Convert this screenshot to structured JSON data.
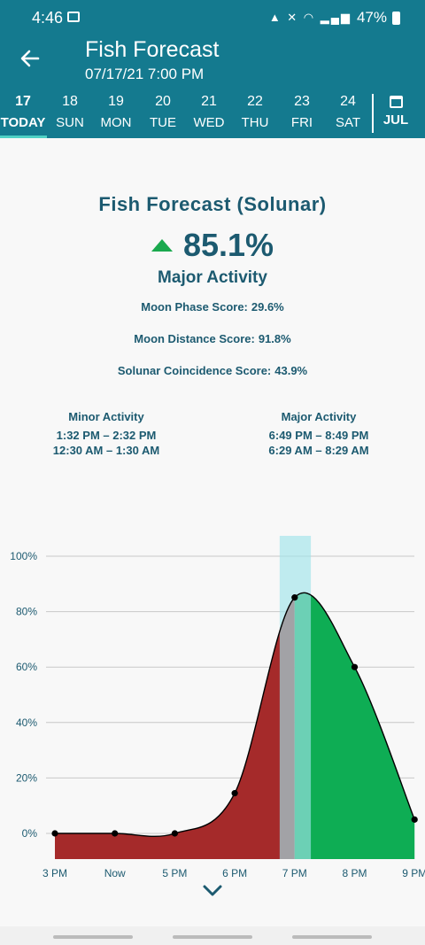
{
  "status": {
    "time": "4:46",
    "battery": "47%"
  },
  "appbar": {
    "title": "Fish Forecast",
    "subtitle": "07/17/21 7:00 PM"
  },
  "days": [
    {
      "num": "17",
      "name": "TODAY",
      "selected": true
    },
    {
      "num": "18",
      "name": "SUN"
    },
    {
      "num": "19",
      "name": "MON"
    },
    {
      "num": "20",
      "name": "TUE"
    },
    {
      "num": "21",
      "name": "WED"
    },
    {
      "num": "22",
      "name": "THU"
    },
    {
      "num": "23",
      "name": "FRI"
    },
    {
      "num": "24",
      "name": "SAT"
    }
  ],
  "month": "JUL",
  "forecast": {
    "title": "Fish Forecast (Solunar)",
    "score": "85.1%",
    "activity": "Major Activity",
    "moon_phase": {
      "label": "Moon Phase Score:",
      "value": "29.6%"
    },
    "moon_distance": {
      "label": "Moon Distance Score:",
      "value": "91.8%"
    },
    "solunar": {
      "label": "Solunar Coincidence Score:",
      "value": "43.9%"
    }
  },
  "minor": {
    "heading": "Minor Activity",
    "times": [
      "1:32 PM – 2:32 PM",
      "12:30 AM – 1:30 AM"
    ]
  },
  "major": {
    "heading": "Major Activity",
    "times": [
      "6:49 PM – 8:49 PM",
      "6:29 AM – 8:29 AM"
    ]
  },
  "colors": {
    "brand": "#147a8f",
    "text": "#1c5a70",
    "low": "#a52a2a",
    "high": "#0ead54",
    "band": "#9fe4ea"
  },
  "chart_data": {
    "type": "area",
    "x": [
      "3 PM",
      "Now",
      "5 PM",
      "6 PM",
      "7 PM",
      "8 PM",
      "9 PM"
    ],
    "xlabels": [
      "3 PM",
      "Now",
      "5 PM",
      "6 PM",
      "7 PM",
      "8 PM",
      "9 PM"
    ],
    "points": [
      {
        "x": 0,
        "y": 0
      },
      {
        "x": 1,
        "y": 0
      },
      {
        "x": 2,
        "y": 0
      },
      {
        "x": 3,
        "y": 14.5
      },
      {
        "x": 4,
        "y": 85.1
      },
      {
        "x": 5,
        "y": 60
      },
      {
        "x": 6,
        "y": 5
      }
    ],
    "yticks": [
      "0%",
      "20%",
      "40%",
      "60%",
      "80%",
      "100%"
    ],
    "ylim": [
      0,
      100
    ],
    "highlight_band": {
      "from": 3.75,
      "to": 4.27
    },
    "grid": true
  }
}
